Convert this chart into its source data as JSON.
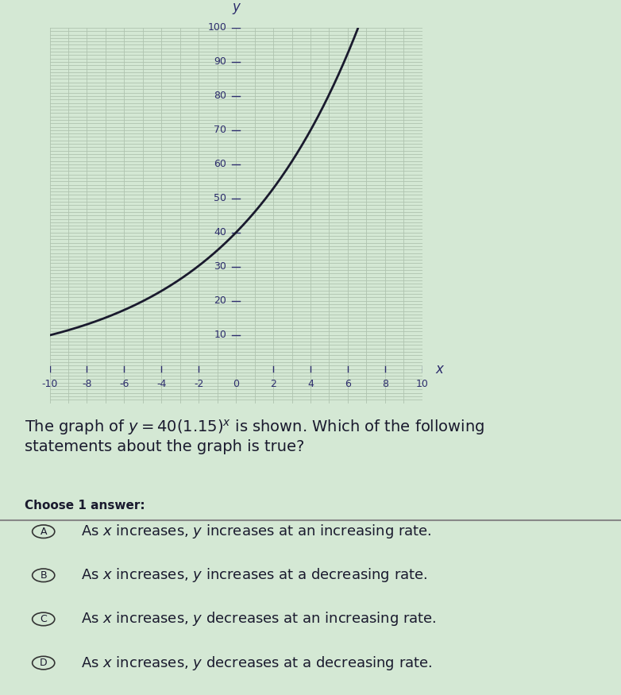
{
  "func_a": 40,
  "func_b": 1.15,
  "x_min": -10,
  "x_max": 10,
  "y_min": -10,
  "y_max": 100,
  "x_ticks": [
    -10,
    -8,
    -6,
    -4,
    -2,
    2,
    4,
    6,
    8,
    10
  ],
  "y_ticks": [
    10,
    20,
    30,
    40,
    50,
    60,
    70,
    80,
    90,
    100
  ],
  "x_label": "x",
  "y_label": "y",
  "curve_color": "#1a1a2e",
  "grid_color": "#b0c4b0",
  "axis_color": "#2c2c6c",
  "background_color": "#d4e8d4",
  "question_text": "The graph of $y = 40(1.15)^x$ is shown. Which of the following\nstatements about the graph is true?",
  "choose_label": "Choose 1 answer:",
  "answers": [
    "As $x$ increases, $y$ increases at an increasing rate.",
    "As $x$ increases, $y$ increases at a decreasing rate.",
    "As $x$ increases, $y$ decreases at an increasing rate.",
    "As $x$ increases, $y$ decreases at a decreasing rate."
  ],
  "answer_labels": [
    "A",
    "B",
    "C",
    "D"
  ],
  "fig_width": 7.82,
  "fig_height": 8.75,
  "font_size_question": 14,
  "font_size_answers": 13,
  "font_size_axis_labels": 12,
  "font_size_ticks": 9
}
